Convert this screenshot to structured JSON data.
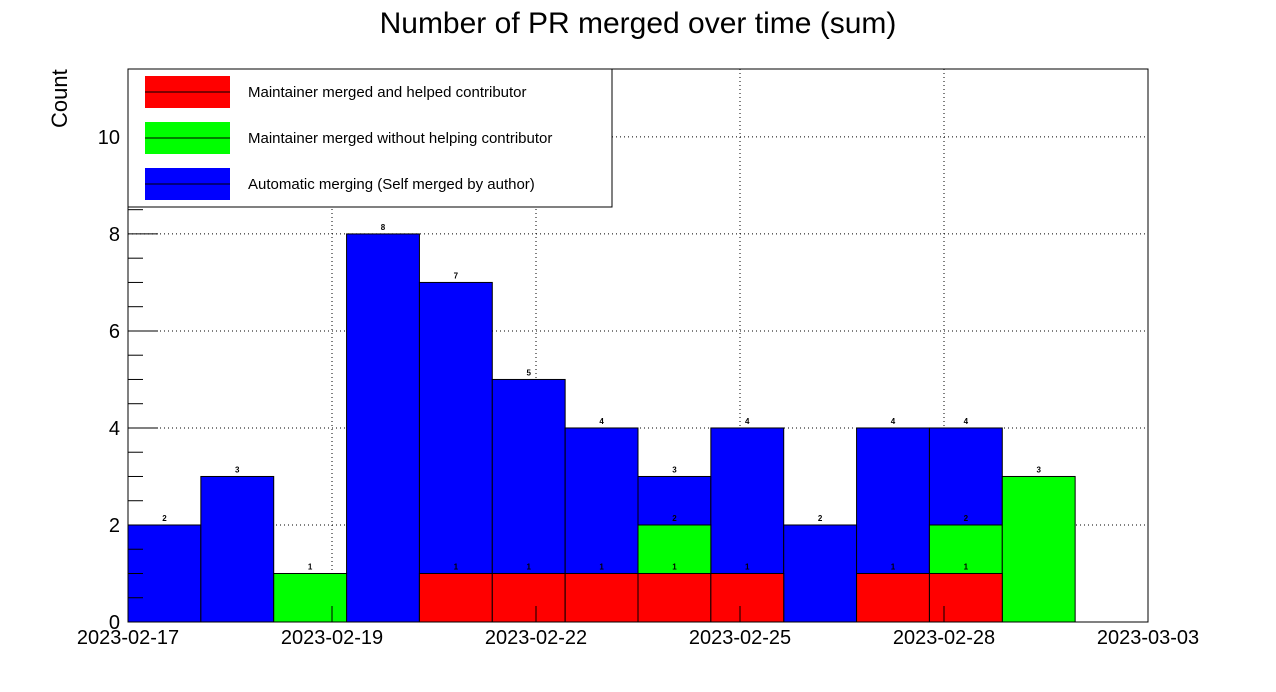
{
  "chart_data": {
    "type": "bar",
    "stacked": false,
    "title": "Number of PR merged over time (sum)",
    "xlabel": "",
    "ylabel": "Count",
    "ylim": [
      0,
      11.4
    ],
    "y_ticks": [
      0,
      2,
      4,
      6,
      8,
      10
    ],
    "x_tick_labels": [
      "2023-02-17",
      "2023-02-19",
      "2023-02-22",
      "2023-02-25",
      "2023-02-28",
      "2023-03-03"
    ],
    "bins": 14,
    "grid": true,
    "legend_position": "top-left",
    "series": [
      {
        "name": "Automatic merging (Self merged by author)",
        "color": "#0000ff",
        "values": [
          2,
          3,
          0,
          8,
          7,
          5,
          4,
          3,
          4,
          2,
          4,
          4,
          0,
          0
        ]
      },
      {
        "name": "Maintainer merged without helping contributor",
        "color": "#00ff00",
        "values": [
          0,
          0,
          1,
          0,
          0,
          0,
          0,
          2,
          0,
          0,
          0,
          2,
          3,
          0
        ]
      },
      {
        "name": "Maintainer merged and helped contributor",
        "color": "#ff0000",
        "values": [
          0,
          0,
          0,
          0,
          1,
          1,
          1,
          1,
          1,
          0,
          1,
          1,
          0,
          0
        ]
      }
    ],
    "legend_order": [
      2,
      1,
      0
    ]
  }
}
